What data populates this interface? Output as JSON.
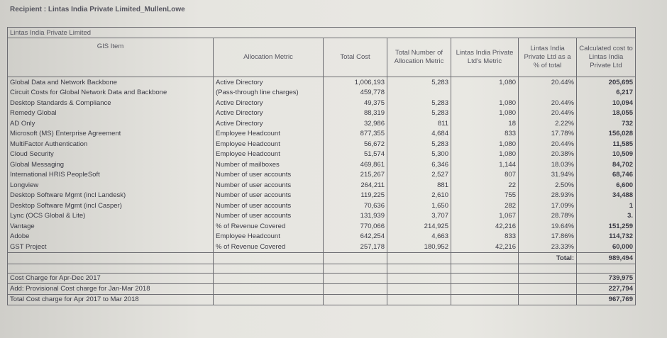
{
  "header": {
    "recipient": "Recipient : Lintas India Private Limited_MullenLowe"
  },
  "table": {
    "title": "Lintas India Private Limited",
    "columns": [
      "GIS Item",
      "Allocation Metric",
      "Total Cost",
      "Total Number of Allocation Metric",
      "Lintas India Private Ltd's Metric",
      "Lintas India Private Ltd as a % of total",
      "Calculated cost to Lintas India Private Ltd"
    ],
    "rows": [
      [
        "Global Data and Network Backbone",
        "Active Directory",
        "1,006,193",
        "5,283",
        "1,080",
        "20.44%",
        "205,695"
      ],
      [
        "Circuit Costs for Global Network Data and Backbone",
        "(Pass-through line charges)",
        "459,778",
        "",
        "",
        "",
        "6,217"
      ],
      [
        "Desktop Standards & Compliance",
        "Active Directory",
        "49,375",
        "5,283",
        "1,080",
        "20.44%",
        "10,094"
      ],
      [
        "Remedy Global",
        "Active Directory",
        "88,319",
        "5,283",
        "1,080",
        "20.44%",
        "18,055"
      ],
      [
        "AD Only",
        "Active Directory",
        "32,986",
        "811",
        "18",
        "2.22%",
        "732"
      ],
      [
        "Microsoft (MS) Enterprise Agreement",
        "Employee Headcount",
        "877,355",
        "4,684",
        "833",
        "17.78%",
        "156,028"
      ],
      [
        "MultiFactor Authentication",
        "Employee Headcount",
        "56,672",
        "5,283",
        "1,080",
        "20.44%",
        "11,585"
      ],
      [
        "Cloud Security",
        "Employee Headcount",
        "51,574",
        "5,300",
        "1,080",
        "20.38%",
        "10,509"
      ],
      [
        "Global Messaging",
        "Number of mailboxes",
        "469,861",
        "6,346",
        "1,144",
        "18.03%",
        "84,702"
      ],
      [
        "International HRIS PeopleSoft",
        "Number of user accounts",
        "215,267",
        "2,527",
        "807",
        "31.94%",
        "68,746"
      ],
      [
        "Longview",
        "Number of user accounts",
        "264,211",
        "881",
        "22",
        "2.50%",
        "6,600"
      ],
      [
        "Desktop Software Mgmt (incl Landesk)",
        "Number of user accounts",
        "119,225",
        "2,610",
        "755",
        "28.93%",
        "34,488"
      ],
      [
        "Desktop Software Mgmt (incl Casper)",
        "Number of user accounts",
        "70,636",
        "1,650",
        "282",
        "17.09%",
        "1"
      ],
      [
        "Lync (OCS Global & Lite)",
        "Number of user accounts",
        "131,939",
        "3,707",
        "1,067",
        "28.78%",
        "3."
      ],
      [
        "Vantage",
        "% of Revenue Covered",
        "770,066",
        "214,925",
        "42,216",
        "19.64%",
        "151,259"
      ],
      [
        "Adobe",
        "Employee Headcount",
        "642,254",
        "4,663",
        "833",
        "17.86%",
        "114,732"
      ],
      [
        "GST Project",
        "% of Revenue Covered",
        "257,178",
        "180,952",
        "42,216",
        "23.33%",
        "60,000"
      ]
    ],
    "total": {
      "label": "Total:",
      "value": "989,494"
    },
    "summary": [
      {
        "label": "Cost Charge for Apr-Dec 2017",
        "value": "739,975"
      },
      {
        "label": "Add: Provisional Cost charge for Jan-Mar 2018",
        "value": "227,794"
      },
      {
        "label": "Total Cost charge for Apr 2017 to Mar 2018",
        "value": "967,769"
      }
    ]
  }
}
